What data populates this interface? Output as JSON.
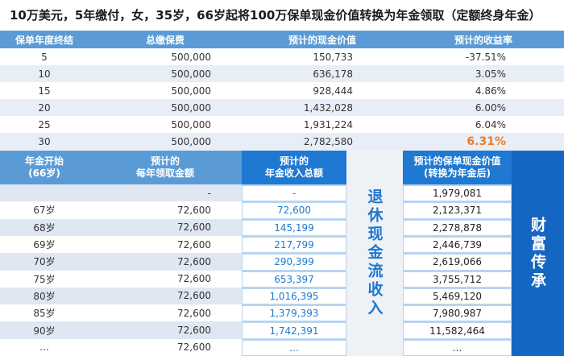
{
  "title": "10万美元，5年缴付，女，35岁，66岁起将100万保单现金价值转换为年金领取（定额终身年金）",
  "top_table": {
    "headers": [
      "保单年度终结",
      "总缴保费",
      "预计的现金价值",
      "预计的收益率"
    ],
    "rows": [
      [
        "5",
        "500,000",
        "150,733",
        "-37.51%"
      ],
      [
        "10",
        "500,000",
        "636,178",
        "3.05%"
      ],
      [
        "15",
        "500,000",
        "928,444",
        "4.86%"
      ],
      [
        "20",
        "500,000",
        "1,432,028",
        "6.00%"
      ],
      [
        "25",
        "500,000",
        "1,931,224",
        "6.04%"
      ],
      [
        "30",
        "500,000",
        "2,782,580",
        "6.31%"
      ]
    ],
    "highlight_color": "#f07b22"
  },
  "bottom_table": {
    "header1": "年金开始\n(66岁)",
    "header2": "预计的\n每年领取金额",
    "header3": "预计的\n年金收入总额",
    "header4": "预计的保单现金价值\n(转换为年金后)",
    "vertical_label_1": "退休现金流收入",
    "vertical_label_2": "财富传承",
    "rows": [
      [
        "",
        "-",
        "-",
        "1,979,081"
      ],
      [
        "67岁",
        "72,600",
        "72,600",
        "2,123,371"
      ],
      [
        "68岁",
        "72,600",
        "145,199",
        "2,278,878"
      ],
      [
        "69岁",
        "72,600",
        "217,799",
        "2,446,739"
      ],
      [
        "70岁",
        "72,600",
        "290,399",
        "2,619,066"
      ],
      [
        "75岁",
        "72,600",
        "653,397",
        "3,755,712"
      ],
      [
        "80岁",
        "72,600",
        "1,016,395",
        "5,469,120"
      ],
      [
        "85岁",
        "72,600",
        "1,379,393",
        "7,980,987"
      ],
      [
        "90岁",
        "72,600",
        "1,742,391",
        "11,582,464"
      ],
      [
        "…",
        "72,600",
        "…",
        "…"
      ]
    ]
  },
  "colors": {
    "header_light": "#5b9bd5",
    "header_dark": "#1f78d1",
    "legacy_band": "#1566c2"
  }
}
